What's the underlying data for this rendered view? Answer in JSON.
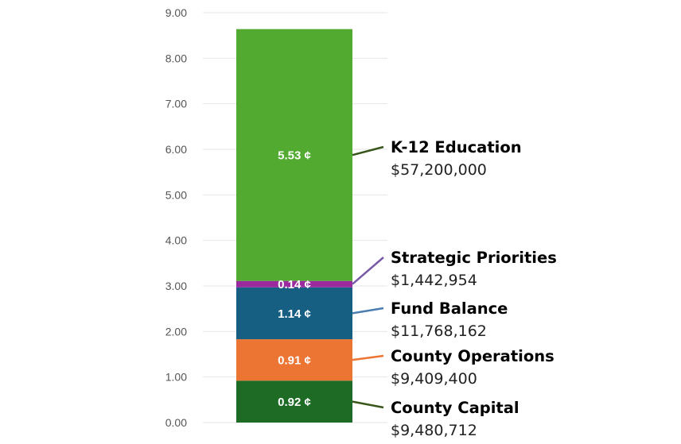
{
  "chart_data": {
    "type": "bar",
    "stacked": true,
    "orientation": "vertical",
    "ylim": [
      0,
      9
    ],
    "y_ticks": [
      "0.00",
      "1.00",
      "2.00",
      "3.00",
      "4.00",
      "5.00",
      "6.00",
      "7.00",
      "8.00",
      "9.00"
    ],
    "grid": true,
    "title": "",
    "xlabel": "",
    "ylabel": "",
    "series": [
      {
        "name": "County Capital",
        "value": 0.92,
        "label": "0.92 ¢",
        "amount": "$9,480,712",
        "color": "#1e6b25",
        "leader_color": "#38561a"
      },
      {
        "name": "County Operations",
        "value": 0.91,
        "label": "0.91 ¢",
        "amount": "$9,409,400",
        "color": "#ec7534",
        "leader_color": "#ec7534"
      },
      {
        "name": "Fund Balance",
        "value": 1.14,
        "label": "1.14 ¢",
        "amount": "$11,768,162",
        "color": "#165e82",
        "leader_color": "#4a7db0"
      },
      {
        "name": "Strategic Priorities",
        "value": 0.14,
        "label": "0.14 ¢",
        "amount": "$1,442,954",
        "color": "#9b2a9e",
        "leader_color": "#7a5aa6"
      },
      {
        "name": "K-12 Education",
        "value": 5.53,
        "label": "5.53 ¢",
        "amount": "$57,200,000",
        "color": "#52aa30",
        "leader_color": "#38561a"
      }
    ]
  }
}
